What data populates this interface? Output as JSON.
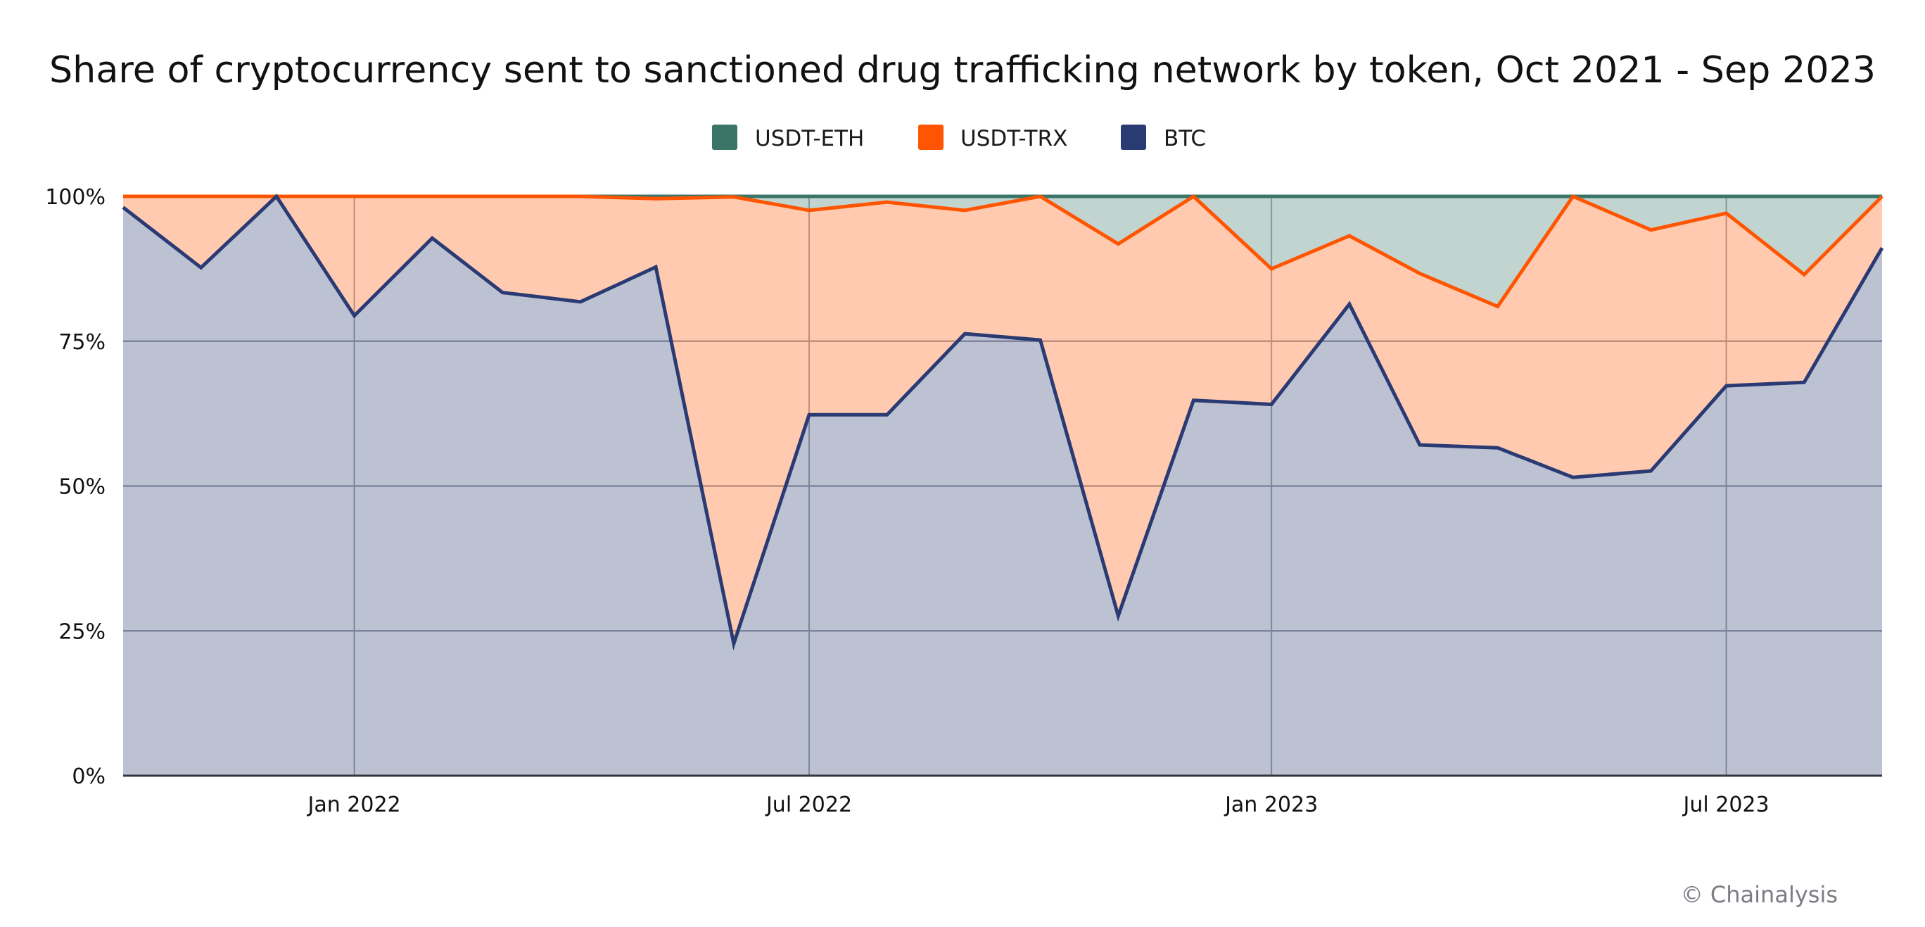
{
  "chart_data": {
    "type": "area",
    "stacked": true,
    "normalized": true,
    "title": "Share of cryptocurrency sent to sanctioned drug trafficking network by token, Oct 2021 - Sep 2023",
    "xlabel": "",
    "ylabel": "",
    "ylim": [
      0,
      100
    ],
    "y_ticks": [
      "0%",
      "25%",
      "50%",
      "75%",
      "100%"
    ],
    "y_tick_values": [
      0,
      25,
      50,
      75,
      100
    ],
    "x_ticks": [
      "Jan 2022",
      "Jul 2022",
      "Jan 2023",
      "Jul 2023"
    ],
    "x_tick_dates": [
      "2022-01-01",
      "2022-07-01",
      "2023-01-01",
      "2023-07-01"
    ],
    "x_range": [
      "2021-10-01",
      "2023-09-01"
    ],
    "grid": true,
    "legend_position": "top-center",
    "x": [
      "2021-10-01",
      "2021-11-01",
      "2021-12-01",
      "2022-01-01",
      "2022-02-01",
      "2022-03-01",
      "2022-04-01",
      "2022-05-01",
      "2022-06-01",
      "2022-07-01",
      "2022-08-01",
      "2022-09-01",
      "2022-10-01",
      "2022-11-01",
      "2022-12-01",
      "2023-01-01",
      "2023-02-01",
      "2023-03-01",
      "2023-04-01",
      "2023-05-01",
      "2023-06-01",
      "2023-07-01",
      "2023-08-01",
      "2023-09-01"
    ],
    "series": [
      {
        "name": "BTC",
        "color": "#2a3a72",
        "values": [
          98.1,
          87.7,
          100.0,
          79.4,
          92.8,
          83.4,
          81.8,
          87.8,
          22.8,
          62.3,
          62.3,
          76.3,
          75.2,
          27.6,
          64.8,
          64.1,
          81.4,
          57.1,
          56.6,
          51.5,
          52.6,
          67.3,
          67.9,
          91.1
        ]
      },
      {
        "name": "USDT-TRX",
        "color": "#ff5500",
        "values": [
          1.9,
          12.3,
          0.0,
          20.6,
          7.2,
          16.6,
          18.2,
          11.8,
          77.1,
          35.3,
          36.7,
          21.3,
          24.8,
          64.2,
          35.2,
          23.4,
          11.8,
          29.6,
          24.4,
          48.5,
          41.6,
          29.8,
          18.6,
          8.9
        ]
      },
      {
        "name": "USDT-ETH",
        "color": "#3a7568",
        "values": [
          0.0,
          0.0,
          0.0,
          0.0,
          0.0,
          0.0,
          0.0,
          0.4,
          0.1,
          2.4,
          1.0,
          2.4,
          0.0,
          8.2,
          0.0,
          12.5,
          6.8,
          13.3,
          19.0,
          0.0,
          5.8,
          2.9,
          13.5,
          0.0
        ]
      }
    ],
    "legend": [
      "USDT-ETH",
      "USDT-TRX",
      "BTC"
    ],
    "legend_colors": [
      "#3a7568",
      "#ff5500",
      "#2a3a72"
    ]
  },
  "footer": {
    "credit": "© Chainalysis"
  }
}
